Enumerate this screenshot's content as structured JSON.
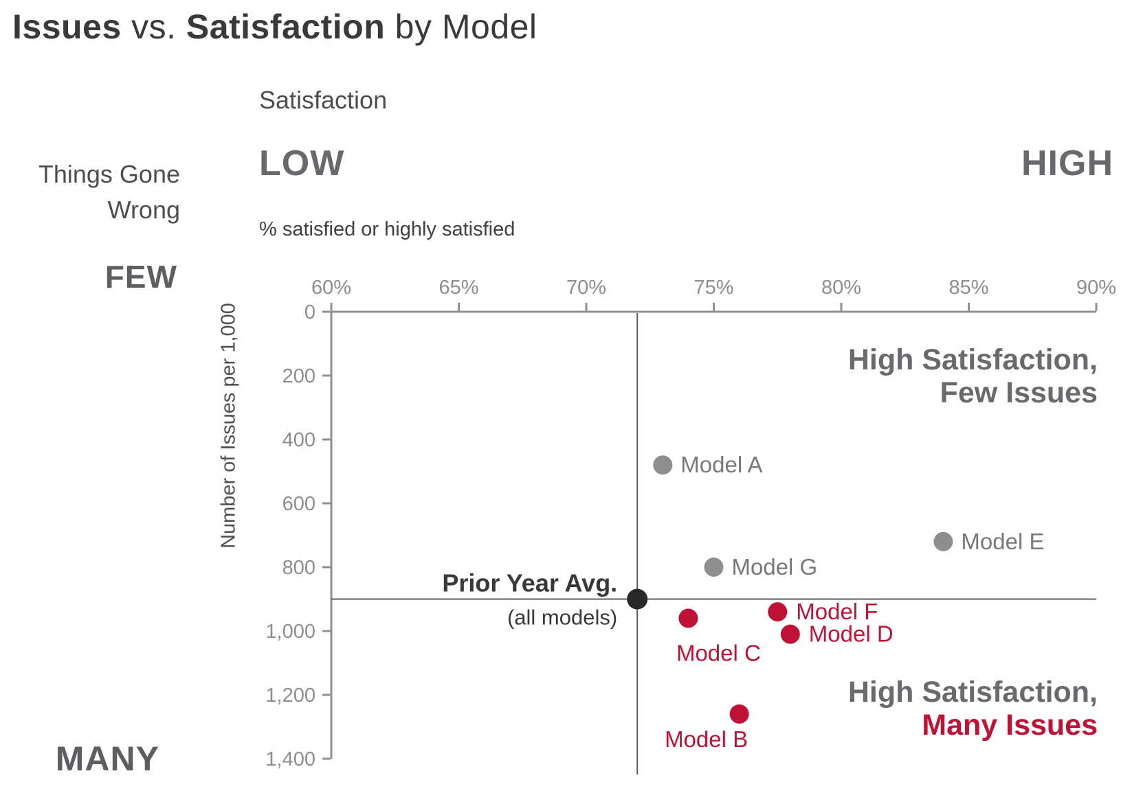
{
  "header": {
    "title_bold1": "Issues",
    "title_mid": " vs. ",
    "title_bold2": "Satisfaction",
    "title_end": " by Model"
  },
  "axis_headers": {
    "satisfaction": "Satisfaction",
    "low": "LOW",
    "high": "HIGH",
    "x_subtitle": "% satisfied or highly satisfied",
    "things_gone_wrong_line1": "Things Gone",
    "things_gone_wrong_line2": "Wrong",
    "few": "FEW",
    "many": "MANY",
    "y_axis_title": "Number of Issues per 1,000"
  },
  "colors": {
    "gray_dot": "#8d8e90",
    "red_dot": "#c01236",
    "black_dot": "#27282a",
    "gray_label": "#77787b",
    "red_label": "#c01236",
    "axis_line": "#8e9094",
    "tick_label": "#8c8d90",
    "crosshair": "#5c5d60",
    "quadrant_gray": "#696a6d",
    "quadrant_red": "#c01236",
    "annotation_dark": "#38393b"
  },
  "chart_data": {
    "type": "scatter",
    "title": "Issues vs. Satisfaction by Model",
    "xlabel": "% satisfied or highly satisfied",
    "ylabel": "Number of Issues per 1,000",
    "xlim": [
      60,
      90
    ],
    "ylim": [
      0,
      1400
    ],
    "y_axis_inverted": true,
    "grid": false,
    "x_ticks": [
      {
        "value": 60,
        "label": "60%"
      },
      {
        "value": 65,
        "label": "65%"
      },
      {
        "value": 70,
        "label": "70%"
      },
      {
        "value": 75,
        "label": "75%"
      },
      {
        "value": 80,
        "label": "80%"
      },
      {
        "value": 85,
        "label": "85%"
      },
      {
        "value": 90,
        "label": "90%"
      }
    ],
    "y_ticks": [
      {
        "value": 0,
        "label": "0"
      },
      {
        "value": 200,
        "label": "200"
      },
      {
        "value": 400,
        "label": "400"
      },
      {
        "value": 600,
        "label": "600"
      },
      {
        "value": 800,
        "label": "800"
      },
      {
        "value": 1000,
        "label": "1,000"
      },
      {
        "value": 1200,
        "label": "1,200"
      },
      {
        "value": 1400,
        "label": "1,400"
      }
    ],
    "reference_point": {
      "label_bold": "Prior Year Avg.",
      "label_sub": "(all models)",
      "x": 72,
      "y": 900,
      "crosshair": true
    },
    "series": [
      {
        "name": "few-issues-models",
        "color_key": "gray_dot",
        "label_color_key": "gray_label",
        "points": [
          {
            "label": "Model A",
            "x": 73,
            "y": 480,
            "label_anchor": "start",
            "label_dx": 26,
            "label_dy": 11
          },
          {
            "label": "Model E",
            "x": 84,
            "y": 720,
            "label_anchor": "start",
            "label_dx": 26,
            "label_dy": 11
          },
          {
            "label": "Model G",
            "x": 75,
            "y": 800,
            "label_anchor": "start",
            "label_dx": 26,
            "label_dy": 11
          }
        ]
      },
      {
        "name": "many-issues-models",
        "color_key": "red_dot",
        "label_color_key": "red_label",
        "points": [
          {
            "label": "Model F",
            "x": 77.5,
            "y": 940,
            "label_anchor": "start",
            "label_dx": 27,
            "label_dy": 11
          },
          {
            "label": "Model D",
            "x": 78,
            "y": 1010,
            "label_anchor": "start",
            "label_dx": 27,
            "label_dy": 11
          },
          {
            "label": "Model C",
            "x": 74,
            "y": 960,
            "label_anchor": "middle",
            "label_dx": 44,
            "label_dy": 62
          },
          {
            "label": "Model B",
            "x": 76,
            "y": 1260,
            "label_anchor": "middle",
            "label_dx": -48,
            "label_dy": 48
          }
        ]
      }
    ],
    "quadrant_labels": [
      {
        "line1": "High Satisfaction,",
        "line2": "Few Issues",
        "line2_color_key": "quadrant_gray",
        "position": "top-right"
      },
      {
        "line1": "High Satisfaction,",
        "line2": "Many Issues",
        "line2_color_key": "quadrant_red",
        "position": "bottom-right"
      }
    ]
  }
}
